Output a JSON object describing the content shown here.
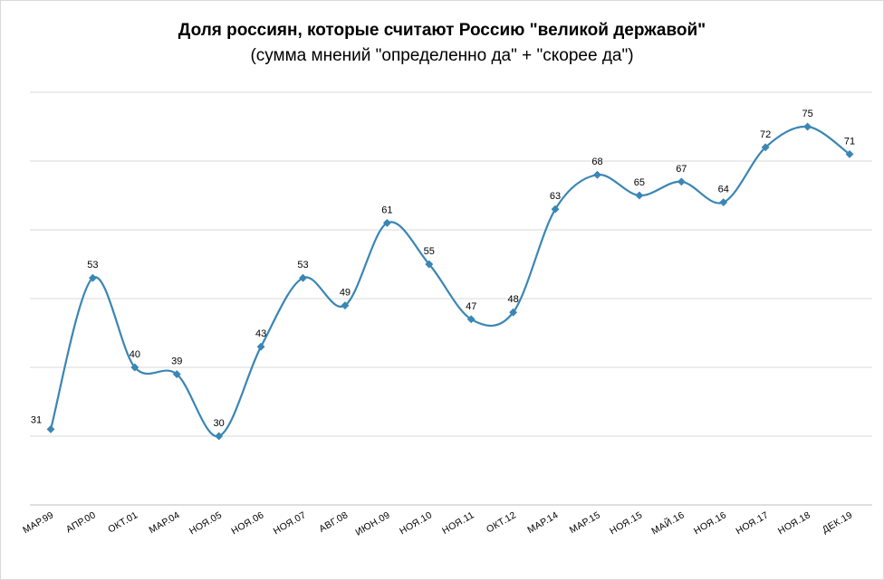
{
  "chart_data": {
    "type": "line",
    "title": "Доля россиян, которые считают Россию \"великой державой\"",
    "subtitle": "(сумма мнений \"определенно да\" + \"скорее да\")",
    "categories": [
      "МАР.99",
      "АПР.00",
      "ОКТ.01",
      "МАР.04",
      "НОЯ.05",
      "НОЯ.06",
      "НОЯ.07",
      "АВГ.08",
      "ИЮН.09",
      "НОЯ.10",
      "НОЯ.11",
      "ОКТ.12",
      "МАР.14",
      "МАР.15",
      "НОЯ.15",
      "МАЙ.16",
      "НОЯ.16",
      "НОЯ.17",
      "НОЯ.18",
      "ДЕК.19"
    ],
    "series": [
      {
        "name": "Доля россиян",
        "values": [
          31,
          53,
          40,
          39,
          30,
          43,
          53,
          49,
          61,
          55,
          47,
          48,
          63,
          68,
          65,
          67,
          64,
          72,
          75,
          71
        ],
        "color": "#3a86b4"
      }
    ],
    "ylim": [
      20,
      80
    ],
    "y_gridlines": [
      30,
      40,
      50,
      60,
      70,
      80
    ],
    "grid": true,
    "xlabel": "",
    "ylabel": "",
    "marker": "diamond",
    "smooth": true,
    "data_labels": true
  }
}
